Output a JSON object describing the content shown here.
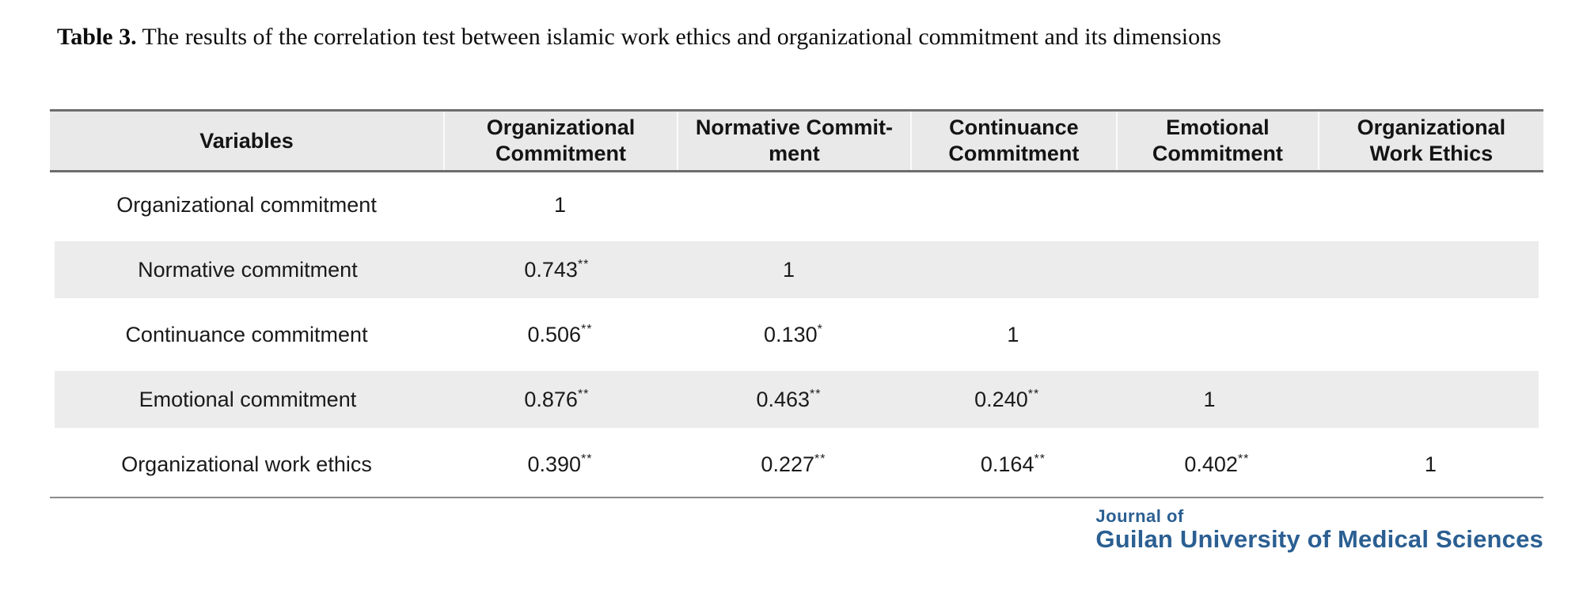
{
  "caption": {
    "prefix": "Table 3.",
    "text": " The results of the correlation test between islamic work ethics and organizational commitment and its dimensions"
  },
  "table": {
    "header": [
      {
        "lines": [
          "Variables"
        ]
      },
      {
        "lines": [
          "Organizational",
          "Commitment"
        ]
      },
      {
        "lines": [
          "Normative Commit-",
          "ment"
        ]
      },
      {
        "lines": [
          "Continuance",
          "Commitment"
        ]
      },
      {
        "lines": [
          "Emotional",
          "Commitment"
        ]
      },
      {
        "lines": [
          "Organizational",
          "Work Ethics"
        ]
      }
    ],
    "rows": [
      {
        "label": "Organizational commitment",
        "cells": [
          {
            "v": "1",
            "s": ""
          },
          {
            "v": "",
            "s": ""
          },
          {
            "v": "",
            "s": ""
          },
          {
            "v": "",
            "s": ""
          },
          {
            "v": "",
            "s": ""
          }
        ]
      },
      {
        "label": "Normative commitment",
        "cells": [
          {
            "v": "0.743",
            "s": "**"
          },
          {
            "v": "1",
            "s": ""
          },
          {
            "v": "",
            "s": ""
          },
          {
            "v": "",
            "s": ""
          },
          {
            "v": "",
            "s": ""
          }
        ]
      },
      {
        "label": "Continuance commitment",
        "cells": [
          {
            "v": "0.506",
            "s": "**"
          },
          {
            "v": "0.130",
            "s": "*"
          },
          {
            "v": "1",
            "s": ""
          },
          {
            "v": "",
            "s": ""
          },
          {
            "v": "",
            "s": ""
          }
        ]
      },
      {
        "label": "Emotional commitment",
        "cells": [
          {
            "v": "0.876",
            "s": "**"
          },
          {
            "v": "0.463",
            "s": "**"
          },
          {
            "v": "0.240",
            "s": "**"
          },
          {
            "v": "1",
            "s": ""
          },
          {
            "v": "",
            "s": ""
          }
        ]
      },
      {
        "label": "Organizational work ethics",
        "cells": [
          {
            "v": "0.390",
            "s": "**"
          },
          {
            "v": "0.227",
            "s": "**"
          },
          {
            "v": "0.164",
            "s": "**"
          },
          {
            "v": "0.402",
            "s": "**"
          },
          {
            "v": "1",
            "s": ""
          }
        ]
      }
    ]
  },
  "logo": {
    "line1": "Journal of",
    "line2": "Guilan University of Medical Sciences"
  },
  "colors": {
    "header_bg": "#e9e9e9",
    "stripe_bg": "#ececec",
    "border_dark": "#6d6d6d",
    "border_bottom": "#8a8a8a",
    "header_sep": "#fbfbfb",
    "text": "#1a1a1a",
    "logo_blue": "#2b5f92"
  }
}
